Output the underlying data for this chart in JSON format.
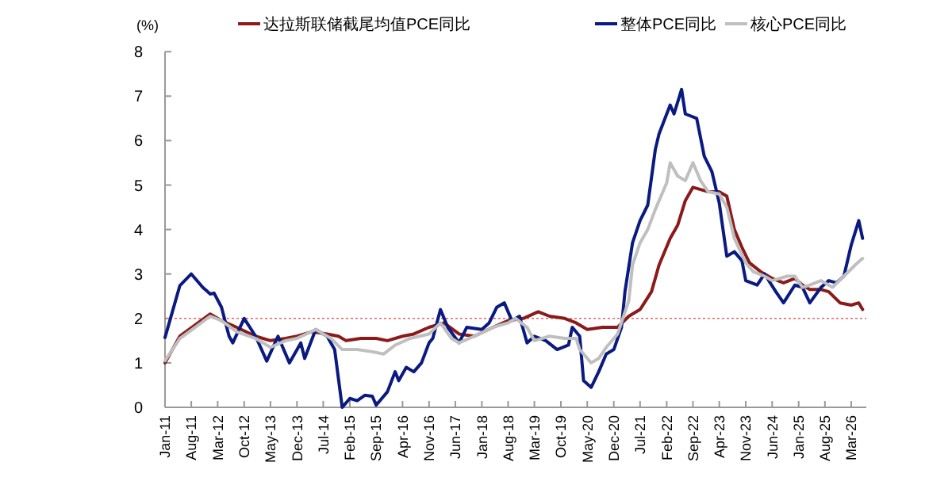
{
  "chart_data": {
    "type": "line",
    "ylabel": "(%)",
    "legend": "top",
    "line_style": "solid",
    "marker": "none",
    "grid": false,
    "xlim": [
      "2011-01",
      "2026-07"
    ],
    "ylim": [
      0,
      8
    ],
    "yticks": [
      0,
      1,
      2,
      3,
      4,
      5,
      6,
      7,
      8
    ],
    "xticks": [
      {
        "value": "2011-01",
        "label": "Jan-11"
      },
      {
        "value": "2011-08",
        "label": "Aug-11"
      },
      {
        "value": "2012-03",
        "label": "Mar-12"
      },
      {
        "value": "2012-10",
        "label": "Oct-12"
      },
      {
        "value": "2013-05",
        "label": "May-13"
      },
      {
        "value": "2013-12",
        "label": "Dec-13"
      },
      {
        "value": "2014-07",
        "label": "Jul-14"
      },
      {
        "value": "2015-02",
        "label": "Feb-15"
      },
      {
        "value": "2015-09",
        "label": "Sep-15"
      },
      {
        "value": "2016-04",
        "label": "Apr-16"
      },
      {
        "value": "2016-11",
        "label": "Nov-16"
      },
      {
        "value": "2017-06",
        "label": "Jun-17"
      },
      {
        "value": "2018-01",
        "label": "Jan-18"
      },
      {
        "value": "2018-08",
        "label": "Aug-18"
      },
      {
        "value": "2019-03",
        "label": "Mar-19"
      },
      {
        "value": "2019-10",
        "label": "Oct-19"
      },
      {
        "value": "2020-05",
        "label": "May-20"
      },
      {
        "value": "2020-12",
        "label": "Dec-20"
      },
      {
        "value": "2021-07",
        "label": "Jul-21"
      },
      {
        "value": "2022-02",
        "label": "Feb-22"
      },
      {
        "value": "2022-09",
        "label": "Sep-22"
      },
      {
        "value": "2023-04",
        "label": "Apr-23"
      },
      {
        "value": "2023-11",
        "label": "Nov-23"
      },
      {
        "value": "2024-06",
        "label": "Jun-24"
      },
      {
        "value": "2025-01",
        "label": "Jan-25"
      },
      {
        "value": "2025-08",
        "label": "Aug-25"
      },
      {
        "value": "2026-03",
        "label": "Mar-26"
      }
    ],
    "ref_lines": [
      {
        "axis": "y",
        "value": 2,
        "color": "#e06666",
        "line_style": "dotted"
      }
    ],
    "series": [
      {
        "name": "达拉斯联储截尾均值PCE同比",
        "color": "#8b1a1a",
        "x": [
          "2011-01",
          "2011-05",
          "2011-09",
          "2012-01",
          "2012-04",
          "2012-08",
          "2013-01",
          "2013-05",
          "2013-09",
          "2013-12",
          "2014-04",
          "2014-08",
          "2014-11",
          "2015-01",
          "2015-05",
          "2015-09",
          "2015-12",
          "2016-04",
          "2016-07",
          "2016-11",
          "2017-03",
          "2017-07",
          "2017-11",
          "2018-04",
          "2018-08",
          "2018-12",
          "2019-04",
          "2019-07",
          "2019-11",
          "2020-02",
          "2020-05",
          "2020-09",
          "2021-01",
          "2021-04",
          "2021-07",
          "2021-10",
          "2021-12",
          "2022-03",
          "2022-05",
          "2022-07",
          "2022-09",
          "2023-01",
          "2023-04",
          "2023-06",
          "2023-08",
          "2023-10",
          "2023-12",
          "2024-03",
          "2024-06",
          "2024-09",
          "2024-12",
          "2025-02",
          "2025-04",
          "2025-07",
          "2025-09",
          "2025-12",
          "2026-03",
          "2026-05",
          "2026-06"
        ],
        "values": [
          1.0,
          1.6,
          1.85,
          2.1,
          1.95,
          1.8,
          1.6,
          1.5,
          1.55,
          1.6,
          1.7,
          1.65,
          1.6,
          1.5,
          1.55,
          1.55,
          1.5,
          1.6,
          1.65,
          1.8,
          1.9,
          1.65,
          1.6,
          1.8,
          1.95,
          2.0,
          2.15,
          2.05,
          2.0,
          1.9,
          1.75,
          1.8,
          1.8,
          2.05,
          2.2,
          2.6,
          3.2,
          3.8,
          4.1,
          4.65,
          4.95,
          4.85,
          4.85,
          4.75,
          4.0,
          3.6,
          3.25,
          3.05,
          2.9,
          2.8,
          2.9,
          2.75,
          2.65,
          2.65,
          2.6,
          2.35,
          2.3,
          2.35,
          2.2
        ]
      },
      {
        "name": "整体PCE同比",
        "color": "#0a1a80",
        "x": [
          "2011-01",
          "2011-05",
          "2011-08",
          "2011-11",
          "2012-01",
          "2012-02",
          "2012-04",
          "2012-06",
          "2012-07",
          "2012-10",
          "2013-01",
          "2013-04",
          "2013-07",
          "2013-10",
          "2014-01",
          "2014-02",
          "2014-05",
          "2014-08",
          "2014-10",
          "2014-12",
          "2015-02",
          "2015-04",
          "2015-06",
          "2015-08",
          "2015-09",
          "2015-12",
          "2016-02",
          "2016-03",
          "2016-05",
          "2016-07",
          "2016-09",
          "2016-11",
          "2016-12",
          "2017-02",
          "2017-04",
          "2017-07",
          "2017-09",
          "2018-01",
          "2018-03",
          "2018-05",
          "2018-07",
          "2018-09",
          "2018-11",
          "2019-01",
          "2019-03",
          "2019-06",
          "2019-09",
          "2019-12",
          "2020-01",
          "2020-03",
          "2020-04",
          "2020-06",
          "2020-08",
          "2020-10",
          "2020-12",
          "2021-02",
          "2021-03",
          "2021-05",
          "2021-07",
          "2021-09",
          "2021-11",
          "2021-12",
          "2022-03",
          "2022-04",
          "2022-06",
          "2022-07",
          "2022-10",
          "2022-12",
          "2023-02",
          "2023-04",
          "2023-06",
          "2023-08",
          "2023-10",
          "2023-11",
          "2024-02",
          "2024-04",
          "2024-07",
          "2024-09",
          "2024-12",
          "2025-02",
          "2025-04",
          "2025-07",
          "2025-09",
          "2025-11",
          "2026-01",
          "2026-03",
          "2026-05",
          "2026-06"
        ],
        "values": [
          1.57,
          2.74,
          3.0,
          2.7,
          2.55,
          2.57,
          2.25,
          1.6,
          1.45,
          2.0,
          1.6,
          1.04,
          1.6,
          1.0,
          1.45,
          1.1,
          1.75,
          1.6,
          1.3,
          0.0,
          0.2,
          0.15,
          0.27,
          0.25,
          0.05,
          0.35,
          0.8,
          0.6,
          0.9,
          0.8,
          1.0,
          1.45,
          1.55,
          2.2,
          1.8,
          1.45,
          1.8,
          1.75,
          1.9,
          2.25,
          2.35,
          1.95,
          2.05,
          1.45,
          1.6,
          1.5,
          1.3,
          1.4,
          1.8,
          1.6,
          0.6,
          0.45,
          0.8,
          1.2,
          1.3,
          1.8,
          2.6,
          3.7,
          4.2,
          4.55,
          5.8,
          6.15,
          6.8,
          6.6,
          7.15,
          6.6,
          6.5,
          5.65,
          5.3,
          4.6,
          3.4,
          3.5,
          3.3,
          2.85,
          2.75,
          3.0,
          2.6,
          2.35,
          2.75,
          2.7,
          2.35,
          2.7,
          2.85,
          2.8,
          2.95,
          3.65,
          4.2,
          3.8
        ]
      },
      {
        "name": "核心PCE同比",
        "color": "#bfbfbf",
        "x": [
          "2011-01",
          "2011-05",
          "2011-09",
          "2012-01",
          "2012-04",
          "2012-08",
          "2013-01",
          "2013-05",
          "2013-09",
          "2013-12",
          "2014-05",
          "2014-09",
          "2014-12",
          "2015-04",
          "2015-08",
          "2015-11",
          "2016-02",
          "2016-06",
          "2016-11",
          "2017-02",
          "2017-05",
          "2017-07",
          "2017-11",
          "2018-04",
          "2018-08",
          "2018-10",
          "2019-01",
          "2019-03",
          "2019-07",
          "2019-11",
          "2020-02",
          "2020-03",
          "2020-06",
          "2020-08",
          "2020-10",
          "2021-01",
          "2021-04",
          "2021-05",
          "2021-07",
          "2021-09",
          "2021-11",
          "2022-02",
          "2022-03",
          "2022-05",
          "2022-07",
          "2022-09",
          "2022-11",
          "2023-01",
          "2023-04",
          "2023-06",
          "2023-08",
          "2023-11",
          "2024-01",
          "2024-04",
          "2024-06",
          "2024-10",
          "2024-12",
          "2025-02",
          "2025-04",
          "2025-07",
          "2025-10",
          "2026-01",
          "2026-04",
          "2026-06"
        ],
        "values": [
          1.05,
          1.55,
          1.8,
          2.05,
          1.95,
          1.7,
          1.55,
          1.35,
          1.5,
          1.55,
          1.75,
          1.55,
          1.3,
          1.3,
          1.25,
          1.2,
          1.4,
          1.55,
          1.65,
          1.9,
          1.55,
          1.45,
          1.6,
          1.8,
          1.9,
          2.0,
          1.8,
          1.5,
          1.6,
          1.55,
          1.55,
          1.3,
          1.0,
          1.1,
          1.35,
          1.65,
          2.4,
          3.2,
          3.7,
          4.0,
          4.45,
          5.05,
          5.5,
          5.2,
          5.1,
          5.5,
          5.1,
          4.85,
          4.8,
          4.5,
          3.8,
          3.25,
          3.05,
          2.95,
          2.85,
          2.95,
          2.95,
          2.7,
          2.75,
          2.85,
          2.7,
          2.95,
          3.2,
          3.35
        ]
      }
    ]
  }
}
